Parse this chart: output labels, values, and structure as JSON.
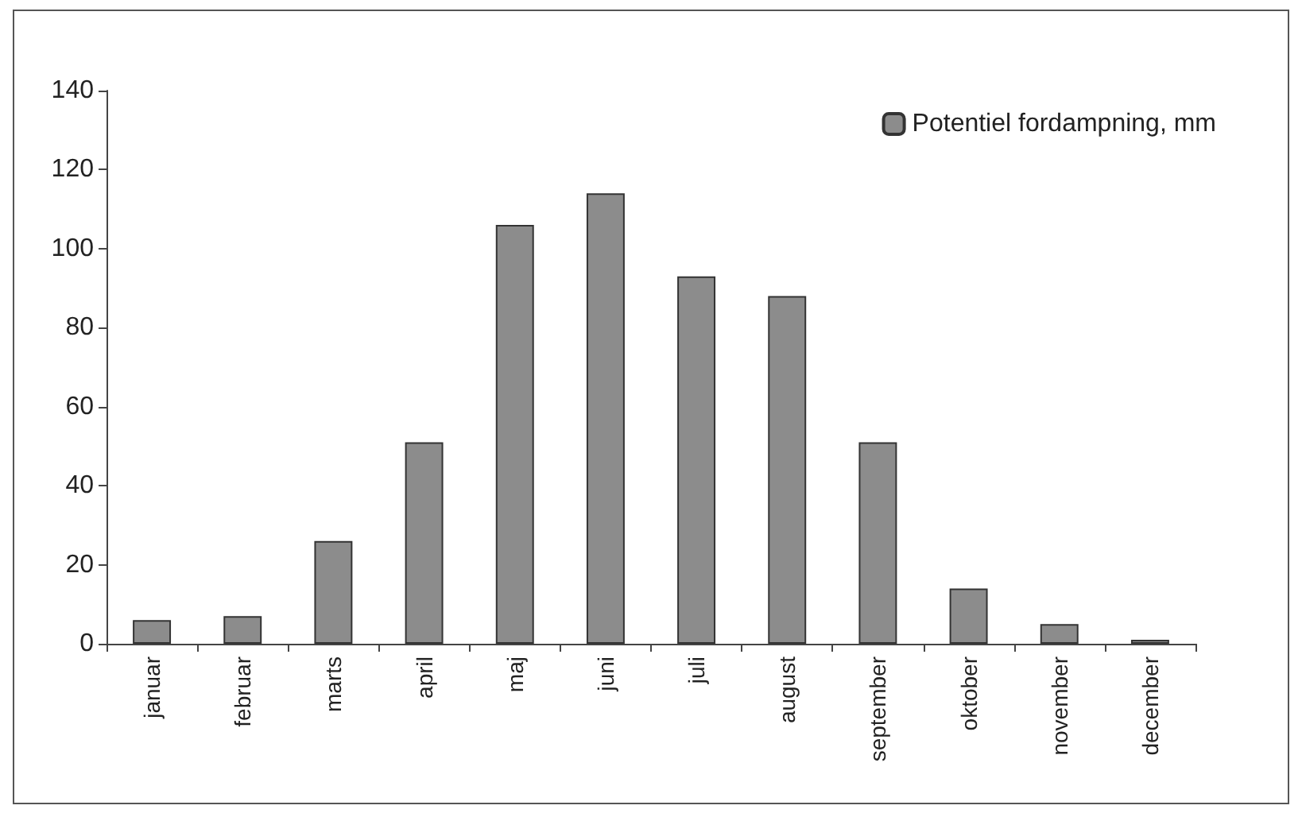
{
  "chart_data": {
    "type": "bar",
    "categories": [
      "januar",
      "februar",
      "marts",
      "april",
      "maj",
      "juni",
      "juli",
      "august",
      "september",
      "oktober",
      "november",
      "december"
    ],
    "series": [
      {
        "name": "Potentiel fordampning, mm",
        "color": "#8c8c8c",
        "values": [
          6,
          7,
          26,
          51,
          106,
          114,
          93,
          88,
          51,
          14,
          5,
          1
        ]
      }
    ],
    "ylim": [
      0,
      140
    ],
    "yticks": [
      0,
      20,
      40,
      60,
      80,
      100,
      120,
      140
    ],
    "grid": false,
    "legend": "top right"
  }
}
